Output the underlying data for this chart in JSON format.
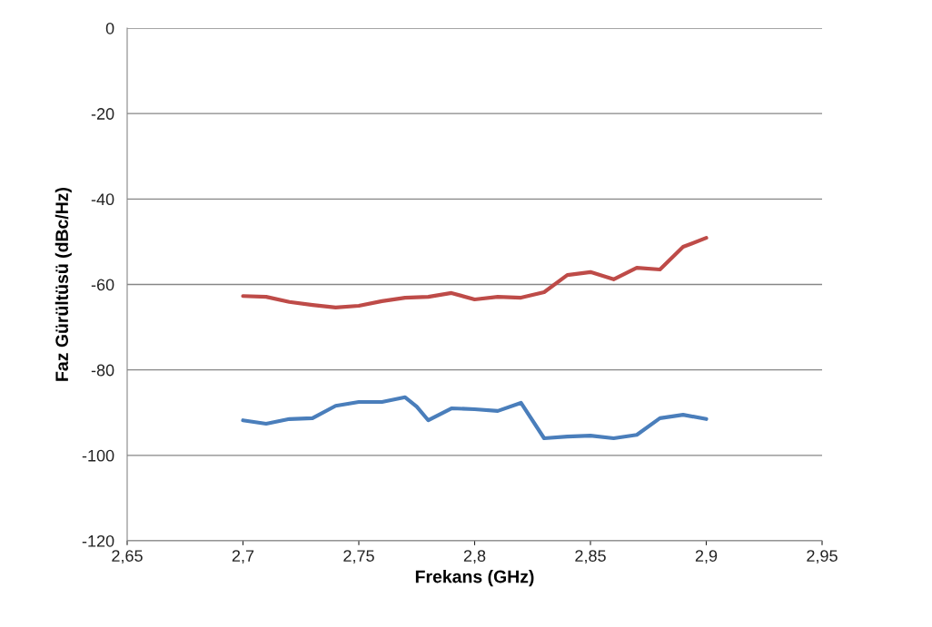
{
  "chart_data": {
    "type": "line",
    "xlabel": "Frekans (GHz)",
    "ylabel": "Faz Gürültüsü (dBc/Hz)",
    "x": [
      2.7,
      2.71,
      2.72,
      2.73,
      2.74,
      2.75,
      2.76,
      2.77,
      2.775,
      2.78,
      2.79,
      2.8,
      2.81,
      2.82,
      2.83,
      2.84,
      2.85,
      2.86,
      2.87,
      2.88,
      2.89,
      2.9
    ],
    "series": [
      {
        "color": "#be4b48",
        "values": [
          -62.7,
          -62.9,
          -64.1,
          -64.8,
          -65.4,
          -65.0,
          -63.9,
          -63.1,
          -63.0,
          -62.9,
          -62.0,
          -63.5,
          -62.9,
          -63.1,
          -61.8,
          -57.8,
          -57.1,
          -58.8,
          -56.1,
          -56.5,
          -51.2,
          -49.1
        ]
      },
      {
        "color": "#4a7ebb",
        "values": [
          -91.8,
          -92.6,
          -91.5,
          -91.3,
          -88.4,
          -87.5,
          -87.5,
          -86.4,
          -88.6,
          -91.8,
          -89.0,
          -89.2,
          -89.6,
          -87.7,
          -96.0,
          -95.6,
          -95.4,
          -96.0,
          -95.2,
          -91.3,
          -90.5,
          -91.5
        ]
      }
    ],
    "xlim": [
      2.65,
      2.95
    ],
    "xticks": [
      {
        "value": 2.65,
        "label": "2,65"
      },
      {
        "value": 2.7,
        "label": "2,7"
      },
      {
        "value": 2.75,
        "label": "2,75"
      },
      {
        "value": 2.8,
        "label": "2,8"
      },
      {
        "value": 2.85,
        "label": "2,85"
      },
      {
        "value": 2.9,
        "label": "2,9"
      },
      {
        "value": 2.95,
        "label": "2,95"
      }
    ],
    "ylim": [
      -120,
      0
    ],
    "yticks": [
      -120,
      -100,
      -80,
      -60,
      -40,
      -20,
      0
    ],
    "grid": "y",
    "legend": false,
    "marker": "none",
    "line_style": "solid"
  }
}
